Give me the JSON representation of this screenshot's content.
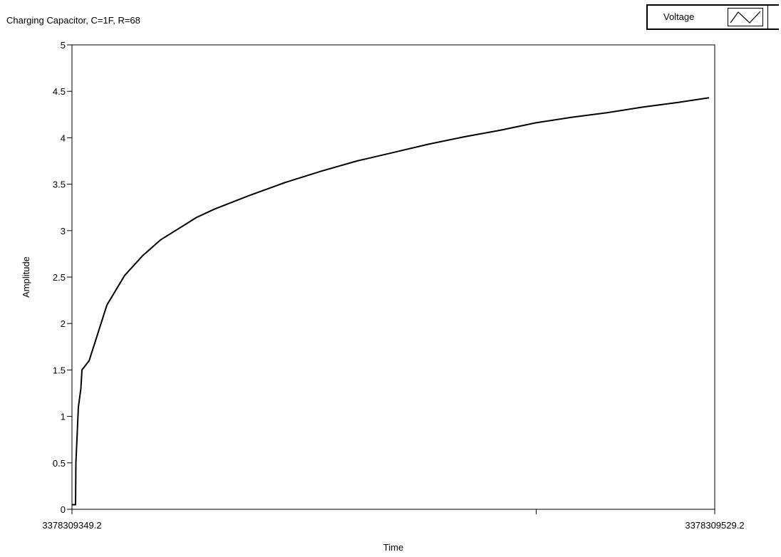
{
  "graph": {
    "title": "Charging Capacitor, C=1F, R=68"
  },
  "legend": {
    "label": "Voltage",
    "icon": "line-sample-icon"
  },
  "colors": {
    "background": "#ffffff",
    "plot_background": "#ffffff",
    "line": "#000000",
    "axis": "#000000"
  },
  "chart_data": {
    "type": "line",
    "title": "Charging Capacitor, C=1F, R=68",
    "xlabel": "Time",
    "ylabel": "Amplitude",
    "xlim": [
      3378309349.2,
      3378309529.2
    ],
    "ylim": [
      0,
      5
    ],
    "x_tick_labels": [
      "3378309349.2",
      "3378309529.2"
    ],
    "x_tick_values": [
      3378309349.2,
      3378309529.2
    ],
    "x_minor_tick_values": [
      3378309479.2
    ],
    "y_tick_values": [
      0,
      0.5,
      1,
      1.5,
      2,
      2.5,
      3,
      3.5,
      4,
      4.5,
      5
    ],
    "y_tick_labels": [
      "0",
      "0.5",
      "1",
      "1.5",
      "2",
      "2.5",
      "3",
      "3.5",
      "4",
      "4.5",
      "5"
    ],
    "grid": false,
    "legend_position": "top-right",
    "series": [
      {
        "name": "Voltage",
        "x": [
          3378309349.2,
          3378309350.2,
          3378309350.3,
          3378309351.0,
          3378309351.7,
          3378309352.0,
          3378309354.0,
          3378309359.0,
          3378309364.0,
          3378309369.0,
          3378309374.0,
          3378309379.0,
          3378309384.0,
          3378309389.0,
          3378309399.0,
          3378309409.0,
          3378309419.0,
          3378309429.0,
          3378309439.0,
          3378309449.0,
          3378309459.0,
          3378309469.0,
          3378309479.0,
          3378309489.0,
          3378309499.0,
          3378309509.0,
          3378309519.0,
          3378309527.6
        ],
        "y": [
          0.05,
          0.05,
          0.5,
          1.1,
          1.3,
          1.5,
          1.6,
          2.2,
          2.52,
          2.73,
          2.9,
          3.02,
          3.14,
          3.23,
          3.38,
          3.52,
          3.64,
          3.75,
          3.84,
          3.93,
          4.01,
          4.08,
          4.16,
          4.22,
          4.27,
          4.33,
          4.38,
          4.43
        ]
      }
    ]
  }
}
